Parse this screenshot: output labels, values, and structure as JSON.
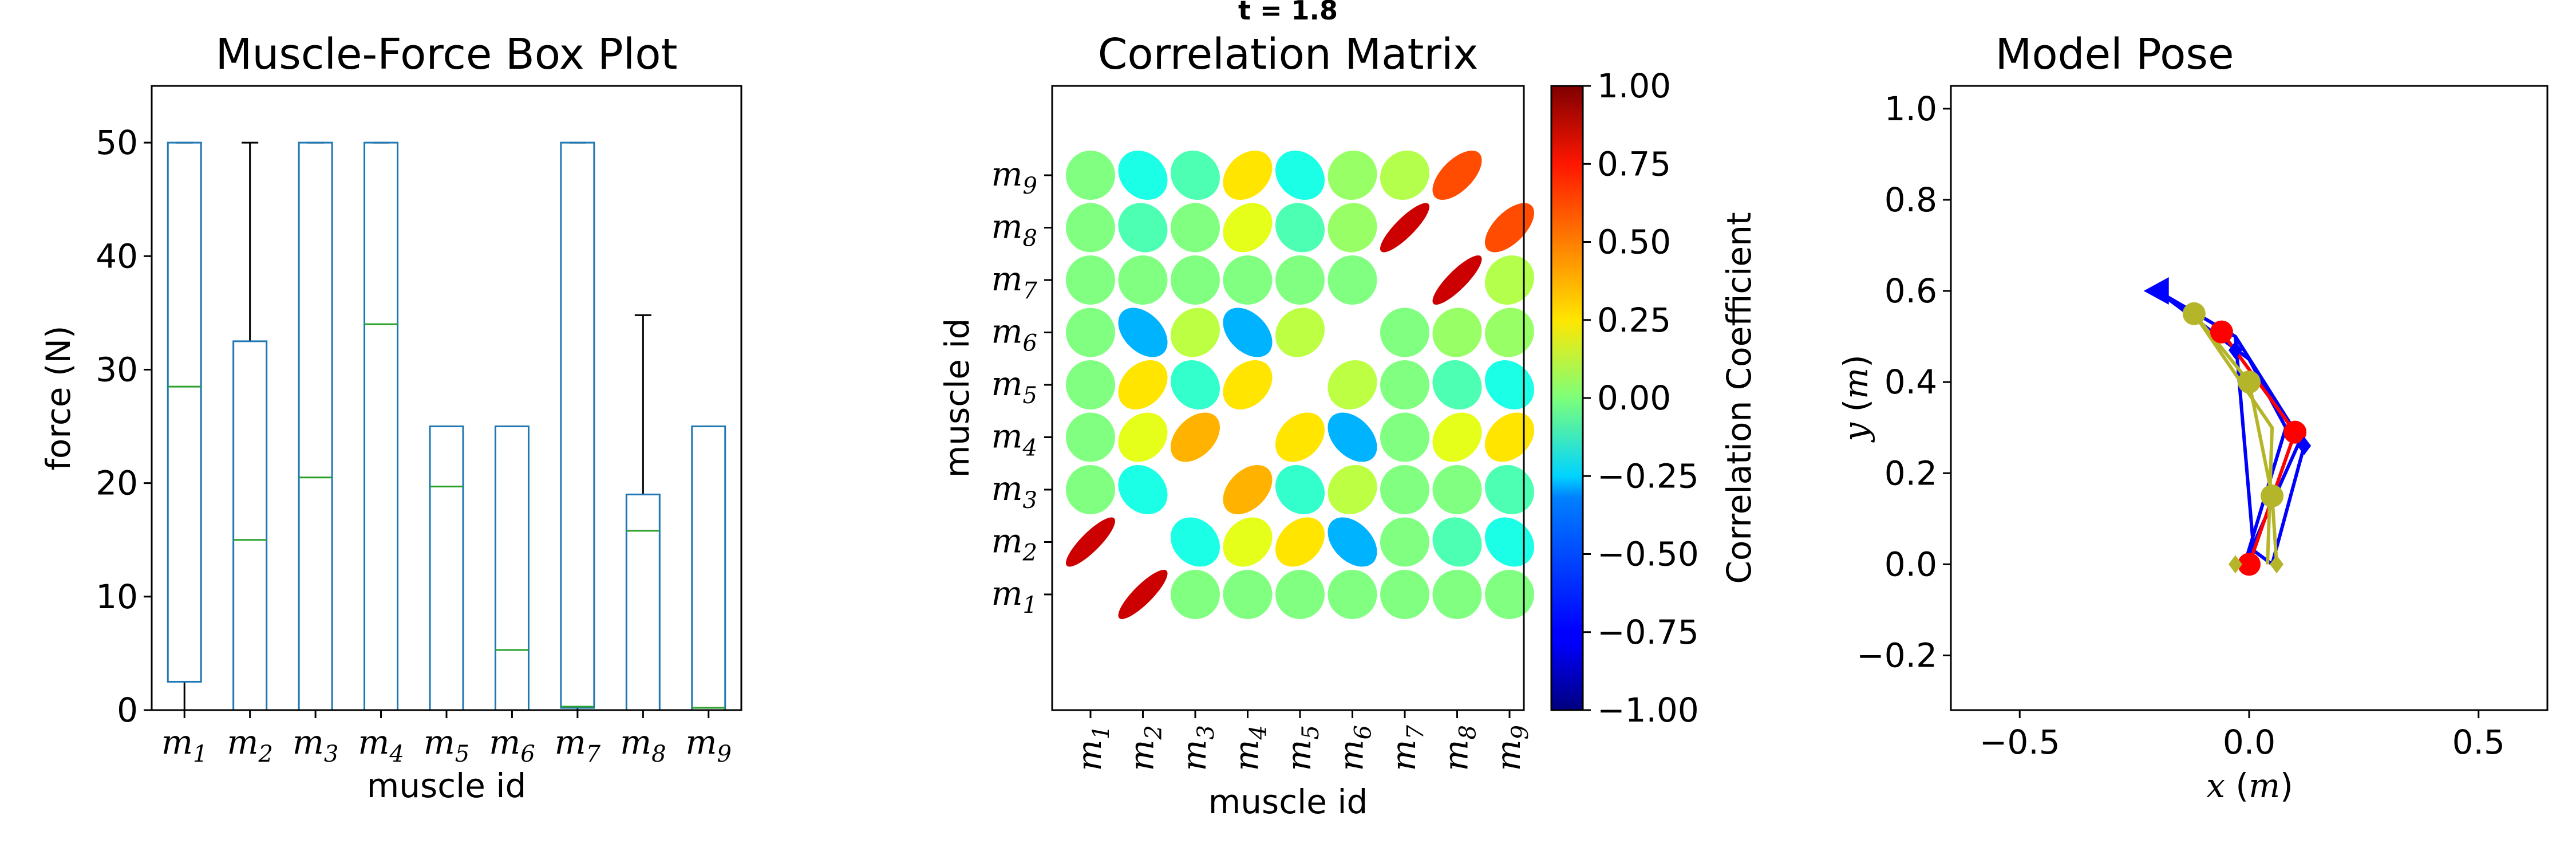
{
  "suptitle": "t = 1.8",
  "boxplot": {
    "title": "Muscle-Force Box Plot",
    "xlabel": "muscle id",
    "ylabel": "force (N)"
  },
  "corr": {
    "title": "Correlation Matrix",
    "xlabel": "muscle id",
    "ylabel": "muscle id",
    "colorbar_label": "Correlation Coefficient"
  },
  "pose": {
    "title": "Model Pose",
    "xlabel": "x (m)",
    "ylabel": "y (m)"
  },
  "chart_data": [
    {
      "type": "box",
      "title": "Muscle-Force Box Plot",
      "xlabel": "muscle id",
      "ylabel": "force (N)",
      "categories": [
        "m1",
        "m2",
        "m3",
        "m4",
        "m5",
        "m6",
        "m7",
        "m8",
        "m9"
      ],
      "ylim": [
        0,
        55
      ],
      "yticks": [
        0,
        10,
        20,
        30,
        40,
        50
      ],
      "boxes": [
        {
          "whislo": 0,
          "q1": 2.5,
          "med": 28.5,
          "q3": 50,
          "whishi": 50
        },
        {
          "whislo": 0,
          "q1": 0,
          "med": 15,
          "q3": 32.5,
          "whishi": 50
        },
        {
          "whislo": 0,
          "q1": 0,
          "med": 20.5,
          "q3": 50,
          "whishi": 50
        },
        {
          "whislo": 0,
          "q1": 0,
          "med": 34,
          "q3": 50,
          "whishi": 50
        },
        {
          "whislo": 0,
          "q1": 0,
          "med": 19.7,
          "q3": 25,
          "whishi": 25
        },
        {
          "whislo": 0,
          "q1": 0,
          "med": 5.3,
          "q3": 25,
          "whishi": 25
        },
        {
          "whislo": 0,
          "q1": 0.2,
          "med": 0.3,
          "q3": 50,
          "whishi": 50
        },
        {
          "whislo": 0,
          "q1": 0,
          "med": 15.8,
          "q3": 19,
          "whishi": 34.8
        },
        {
          "whislo": 0,
          "q1": 0,
          "med": 0.2,
          "q3": 25,
          "whishi": 25
        }
      ],
      "box_color": "#1f77b4",
      "median_color": "#2ca02c",
      "grid": false
    },
    {
      "type": "heatmap",
      "title": "Correlation Matrix",
      "xlabel": "muscle id",
      "ylabel": "muscle id",
      "labels": [
        "m1",
        "m2",
        "m3",
        "m4",
        "m5",
        "m6",
        "m7",
        "m8",
        "m9"
      ],
      "colorbar_label": "Correlation Coefficient",
      "clim": [
        -1,
        1
      ],
      "colorbar_ticks": [
        "1.00",
        "0.75",
        "0.50",
        "0.25",
        "0.00",
        "−0.25",
        "−0.50",
        "−0.75",
        "−1.00"
      ],
      "colormap": "jet",
      "matrix": [
        [
          null,
          0.85,
          0.0,
          0.0,
          0.0,
          0.0,
          0.0,
          0.0,
          0.0
        ],
        [
          0.85,
          null,
          -0.2,
          0.2,
          0.3,
          -0.4,
          0.0,
          -0.1,
          -0.2
        ],
        [
          0.0,
          -0.2,
          null,
          0.4,
          -0.15,
          0.12,
          0.0,
          0.0,
          -0.1
        ],
        [
          0.0,
          0.2,
          0.4,
          null,
          0.3,
          -0.4,
          0.0,
          0.2,
          0.3
        ],
        [
          0.0,
          0.3,
          -0.15,
          0.3,
          null,
          0.12,
          0.0,
          -0.1,
          -0.2
        ],
        [
          0.0,
          -0.4,
          0.12,
          -0.4,
          0.12,
          null,
          0.0,
          0.05,
          0.05
        ],
        [
          0.0,
          0.0,
          0.0,
          0.0,
          0.0,
          0.0,
          null,
          0.85,
          0.1
        ],
        [
          0.0,
          -0.1,
          0.0,
          0.2,
          -0.1,
          0.05,
          0.85,
          null,
          0.6
        ],
        [
          0.0,
          -0.2,
          -0.1,
          0.3,
          -0.2,
          0.05,
          0.1,
          0.6,
          null
        ]
      ]
    },
    {
      "type": "line",
      "title": "Model Pose",
      "xlabel": "x (m)",
      "ylabel": "y (m)",
      "xlim": [
        -0.65,
        0.65
      ],
      "ylim": [
        -0.32,
        1.05
      ],
      "xticks": [
        -0.5,
        0.0,
        0.5
      ],
      "yticks": [
        -0.2,
        0.0,
        0.2,
        0.4,
        0.6,
        0.8,
        1.0
      ],
      "series": [
        {
          "color": "#0000ff",
          "points": [
            [
              -0.2,
              0.6
            ],
            [
              -0.03,
              0.5
            ],
            [
              0.12,
              0.26
            ],
            [
              0.05,
              0.0
            ],
            [
              0.01,
              0.03
            ],
            [
              -0.03,
              0.5
            ]
          ]
        },
        {
          "color": "#0000ff",
          "points": [
            [
              -0.2,
              0.6
            ],
            [
              0.0,
              0.45
            ],
            [
              0.08,
              0.3
            ],
            [
              -0.01,
              0.0
            ],
            [
              0.11,
              0.27
            ]
          ]
        },
        {
          "color": "#ff0000",
          "points": [
            [
              -0.06,
              0.51
            ],
            [
              0.1,
              0.29
            ],
            [
              0.0,
              0.0
            ]
          ]
        },
        {
          "color": "#b5b52a",
          "points": [
            [
              -0.12,
              0.55
            ],
            [
              0.0,
              0.4
            ],
            [
              0.05,
              0.15
            ],
            [
              0.06,
              0.0
            ]
          ]
        },
        {
          "color": "#b5b52a",
          "points": [
            [
              -0.12,
              0.55
            ],
            [
              0.05,
              0.3
            ],
            [
              0.04,
              0.0
            ]
          ]
        }
      ],
      "markers": [
        {
          "shape": "triangle",
          "color": "#0000ff",
          "point": [
            -0.2,
            0.6
          ]
        },
        {
          "shape": "circle",
          "color": "#ff0000",
          "point": [
            -0.06,
            0.51
          ]
        },
        {
          "shape": "circle",
          "color": "#ff0000",
          "point": [
            0.1,
            0.29
          ]
        },
        {
          "shape": "circle",
          "color": "#ff0000",
          "point": [
            0.0,
            0.0
          ]
        },
        {
          "shape": "circle",
          "color": "#b5b52a",
          "point": [
            -0.12,
            0.55
          ]
        },
        {
          "shape": "circle",
          "color": "#b5b52a",
          "point": [
            0.0,
            0.4
          ]
        },
        {
          "shape": "circle",
          "color": "#b5b52a",
          "point": [
            0.05,
            0.15
          ]
        },
        {
          "shape": "diamond",
          "color": "#0000ff",
          "point": [
            0.12,
            0.26
          ]
        },
        {
          "shape": "diamond",
          "color": "#0000ff",
          "point": [
            -0.03,
            0.47
          ]
        },
        {
          "shape": "diamond",
          "color": "#b5b52a",
          "point": [
            -0.03,
            0.0
          ]
        },
        {
          "shape": "diamond",
          "color": "#b5b52a",
          "point": [
            0.06,
            0.0
          ]
        }
      ],
      "grid": false
    }
  ]
}
